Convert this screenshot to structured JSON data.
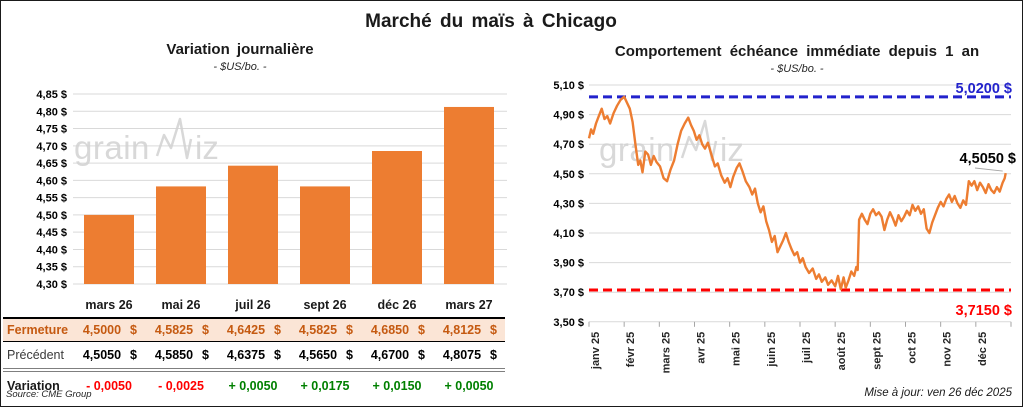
{
  "header": {
    "title": "Marché du maïs à Chicago"
  },
  "footer": {
    "source": "Source: CME Group",
    "updated": "Mise à jour: ven 26 déc 2025"
  },
  "watermark": {
    "pre": "grain",
    "post": "iz"
  },
  "colors": {
    "bar": "#ED7D31",
    "line": "#ED7D31",
    "grid": "#D9D9D9",
    "high": "#2222CC",
    "low": "#FF0000",
    "close_bg": "#FBE5D6",
    "close_text": "#C55A11"
  },
  "chart_data": [
    {
      "id": "daily-variation",
      "type": "bar",
      "title": "Variation journalière",
      "subtitle": "- $US/bo. -",
      "categories": [
        "mars 26",
        "mai 26",
        "juil 26",
        "sept 26",
        "déc 26",
        "mars 27"
      ],
      "values": [
        4.5,
        4.5825,
        4.6425,
        4.5825,
        4.685,
        4.8125
      ],
      "ylabel": "$US/bo.",
      "ylim": [
        4.3,
        4.85
      ],
      "ytick_step": 0.05,
      "grid": true,
      "legend": "none"
    },
    {
      "id": "front-month-one-year",
      "type": "line",
      "title": "Comportement échéance immédiate depuis 1 an",
      "subtitle": "- $US/bo. -",
      "x_labels": [
        "janv 25",
        "févr 25",
        "mars 25",
        "avr 25",
        "mai 25",
        "juin 25",
        "juil 25",
        "août 25",
        "sept 25",
        "oct 25",
        "nov 25",
        "déc 25"
      ],
      "ylim": [
        3.5,
        5.1
      ],
      "ytick_step": 0.2,
      "grid": true,
      "high_line": {
        "value": 5.02,
        "label": "5,0200 $"
      },
      "low_line": {
        "value": 3.715,
        "label": "3,7150 $"
      },
      "last_point": {
        "value": 4.505,
        "label": "4,5050 $"
      },
      "points": [
        [
          0.0,
          4.74
        ],
        [
          0.06,
          4.8
        ],
        [
          0.12,
          4.77
        ],
        [
          0.2,
          4.84
        ],
        [
          0.28,
          4.89
        ],
        [
          0.36,
          4.94
        ],
        [
          0.44,
          4.87
        ],
        [
          0.52,
          4.89
        ],
        [
          0.6,
          4.84
        ],
        [
          0.7,
          4.91
        ],
        [
          0.8,
          4.96
        ],
        [
          0.9,
          5.0
        ],
        [
          1.0,
          5.02
        ],
        [
          1.08,
          4.98
        ],
        [
          1.16,
          4.94
        ],
        [
          1.24,
          4.85
        ],
        [
          1.32,
          4.7
        ],
        [
          1.4,
          4.56
        ],
        [
          1.46,
          4.59
        ],
        [
          1.52,
          4.51
        ],
        [
          1.6,
          4.65
        ],
        [
          1.68,
          4.63
        ],
        [
          1.76,
          4.56
        ],
        [
          1.84,
          4.62
        ],
        [
          1.92,
          4.58
        ],
        [
          2.02,
          4.55
        ],
        [
          2.12,
          4.47
        ],
        [
          2.22,
          4.45
        ],
        [
          2.32,
          4.53
        ],
        [
          2.42,
          4.59
        ],
        [
          2.52,
          4.7
        ],
        [
          2.62,
          4.79
        ],
        [
          2.72,
          4.84
        ],
        [
          2.82,
          4.88
        ],
        [
          2.9,
          4.83
        ],
        [
          2.98,
          4.79
        ],
        [
          3.06,
          4.73
        ],
        [
          3.14,
          4.76
        ],
        [
          3.22,
          4.7
        ],
        [
          3.3,
          4.67
        ],
        [
          3.38,
          4.71
        ],
        [
          3.48,
          4.63
        ],
        [
          3.58,
          4.55
        ],
        [
          3.66,
          4.57
        ],
        [
          3.76,
          4.49
        ],
        [
          3.86,
          4.44
        ],
        [
          3.94,
          4.47
        ],
        [
          4.02,
          4.41
        ],
        [
          4.1,
          4.48
        ],
        [
          4.2,
          4.54
        ],
        [
          4.28,
          4.57
        ],
        [
          4.36,
          4.52
        ],
        [
          4.46,
          4.45
        ],
        [
          4.56,
          4.41
        ],
        [
          4.64,
          4.36
        ],
        [
          4.72,
          4.4
        ],
        [
          4.8,
          4.3
        ],
        [
          4.88,
          4.24
        ],
        [
          4.96,
          4.28
        ],
        [
          5.04,
          4.18
        ],
        [
          5.12,
          4.12
        ],
        [
          5.2,
          4.04
        ],
        [
          5.28,
          4.08
        ],
        [
          5.36,
          3.97
        ],
        [
          5.44,
          4.01
        ],
        [
          5.52,
          4.05
        ],
        [
          5.6,
          4.1
        ],
        [
          5.68,
          4.04
        ],
        [
          5.76,
          3.99
        ],
        [
          5.84,
          3.95
        ],
        [
          5.92,
          3.97
        ],
        [
          6.0,
          3.9
        ],
        [
          6.08,
          3.93
        ],
        [
          6.16,
          3.87
        ],
        [
          6.26,
          3.83
        ],
        [
          6.36,
          3.86
        ],
        [
          6.46,
          3.79
        ],
        [
          6.54,
          3.82
        ],
        [
          6.62,
          3.77
        ],
        [
          6.72,
          3.8
        ],
        [
          6.8,
          3.75
        ],
        [
          6.9,
          3.78
        ],
        [
          7.0,
          3.74
        ],
        [
          7.08,
          3.81
        ],
        [
          7.16,
          3.72
        ],
        [
          7.24,
          3.8
        ],
        [
          7.3,
          3.73
        ],
        [
          7.38,
          3.78
        ],
        [
          7.46,
          3.84
        ],
        [
          7.54,
          3.81
        ],
        [
          7.6,
          3.87
        ],
        [
          7.64,
          3.85
        ],
        [
          7.68,
          4.19
        ],
        [
          7.76,
          4.23
        ],
        [
          7.84,
          4.19
        ],
        [
          7.92,
          4.16
        ],
        [
          8.0,
          4.23
        ],
        [
          8.08,
          4.26
        ],
        [
          8.16,
          4.22
        ],
        [
          8.24,
          4.24
        ],
        [
          8.32,
          4.21
        ],
        [
          8.4,
          4.12
        ],
        [
          8.48,
          4.19
        ],
        [
          8.56,
          4.24
        ],
        [
          8.64,
          4.2
        ],
        [
          8.72,
          4.15
        ],
        [
          8.8,
          4.22
        ],
        [
          8.88,
          4.18
        ],
        [
          8.96,
          4.21
        ],
        [
          9.04,
          4.25
        ],
        [
          9.12,
          4.22
        ],
        [
          9.2,
          4.29
        ],
        [
          9.28,
          4.25
        ],
        [
          9.36,
          4.28
        ],
        [
          9.44,
          4.23
        ],
        [
          9.52,
          4.26
        ],
        [
          9.6,
          4.13
        ],
        [
          9.68,
          4.1
        ],
        [
          9.76,
          4.17
        ],
        [
          9.84,
          4.22
        ],
        [
          9.92,
          4.27
        ],
        [
          10.0,
          4.31
        ],
        [
          10.08,
          4.28
        ],
        [
          10.16,
          4.33
        ],
        [
          10.24,
          4.36
        ],
        [
          10.32,
          4.31
        ],
        [
          10.4,
          4.35
        ],
        [
          10.48,
          4.3
        ],
        [
          10.56,
          4.27
        ],
        [
          10.64,
          4.32
        ],
        [
          10.72,
          4.29
        ],
        [
          10.8,
          4.45
        ],
        [
          10.88,
          4.42
        ],
        [
          10.96,
          4.45
        ],
        [
          11.04,
          4.39
        ],
        [
          11.12,
          4.44
        ],
        [
          11.2,
          4.41
        ],
        [
          11.28,
          4.37
        ],
        [
          11.36,
          4.43
        ],
        [
          11.44,
          4.39
        ],
        [
          11.52,
          4.37
        ],
        [
          11.6,
          4.41
        ],
        [
          11.68,
          4.38
        ],
        [
          11.76,
          4.44
        ],
        [
          11.82,
          4.47
        ],
        [
          11.85,
          4.505
        ]
      ]
    }
  ],
  "table": {
    "col_headers": [
      "mars 26",
      "mai 26",
      "juil 26",
      "sept 26",
      "déc 26",
      "mars 27"
    ],
    "currency": "$",
    "rows": [
      {
        "label": "Fermeture",
        "style": "close",
        "values": [
          "4,5000",
          "4,5825",
          "4,6425",
          "4,5825",
          "4,6850",
          "4,8125"
        ],
        "suffix": true
      },
      {
        "label": "Précédent",
        "style": "previous",
        "values": [
          "4,5050",
          "4,5850",
          "4,6375",
          "4,5650",
          "4,6700",
          "4,8075"
        ],
        "suffix": true
      },
      {
        "label": "Variation",
        "style": "variation",
        "values": [
          "- 0,0050",
          "- 0,0025",
          "+ 0,0050",
          "+ 0,0175",
          "+ 0,0150",
          "+ 0,0050"
        ],
        "signs": [
          "neg",
          "neg",
          "pos",
          "pos",
          "pos",
          "pos"
        ],
        "suffix": false
      }
    ]
  }
}
